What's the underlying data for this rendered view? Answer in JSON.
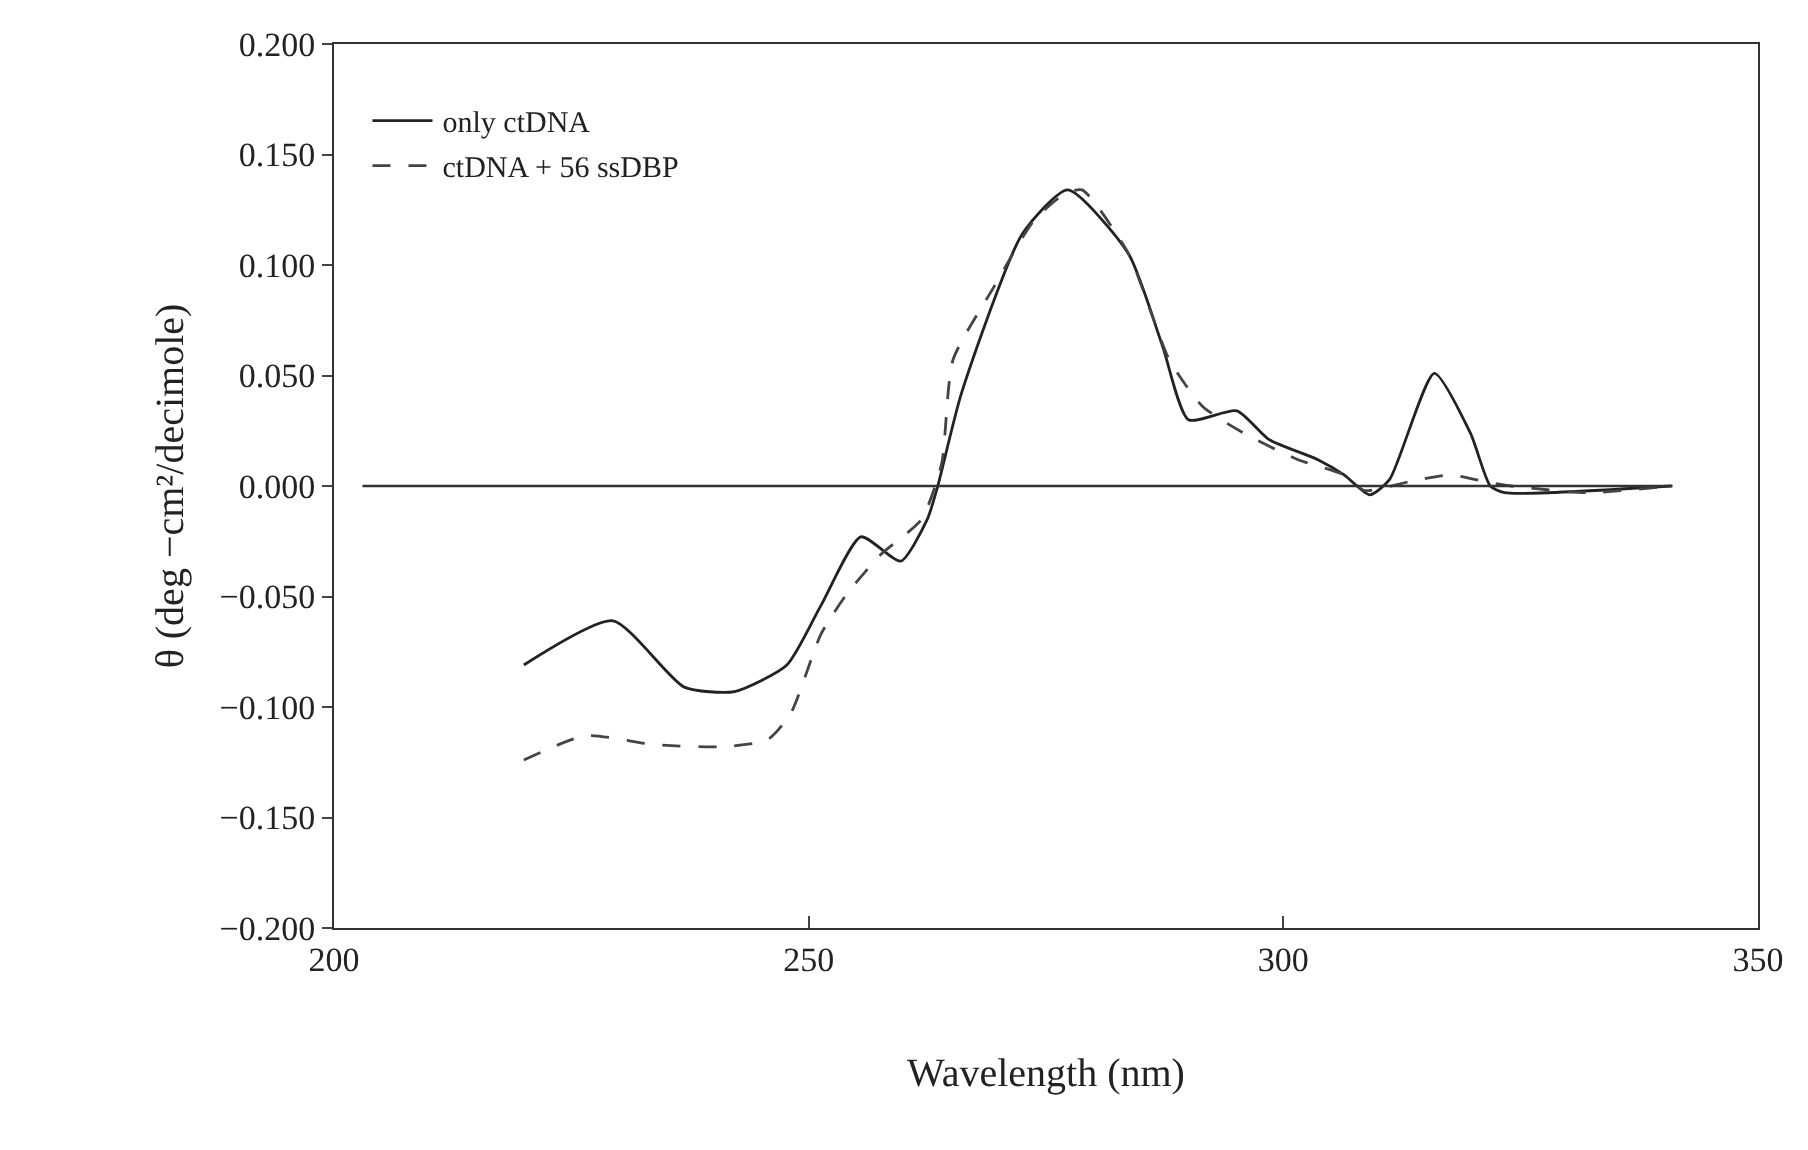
{
  "chart_data": {
    "type": "line",
    "xlabel": "Wavelength (nm)",
    "ylabel": "θ (deg −cm²/decimole)",
    "xlim": [
      200,
      350
    ],
    "xticks": [
      200,
      250,
      300,
      350
    ],
    "ylim": [
      -0.2,
      0.2
    ],
    "yticks": [
      {
        "value": 0.2,
        "label": "0.200"
      },
      {
        "value": 0.15,
        "label": "0.150"
      },
      {
        "value": 0.1,
        "label": "0.100"
      },
      {
        "value": 0.05,
        "label": "0.050"
      },
      {
        "value": 0,
        "label": "0.000"
      },
      {
        "value": -0.05,
        "label": "−0.050"
      },
      {
        "value": -0.1,
        "label": "−0.100"
      },
      {
        "value": -0.15,
        "label": "−0.150"
      },
      {
        "value": -0.2,
        "label": "−0.200"
      }
    ],
    "grid": false,
    "legend": "top left",
    "marker": "none",
    "ref_lines": [
      {
        "axis": "y",
        "value": 0,
        "color": "#333333"
      }
    ],
    "series": [
      {
        "name": "only ctDNA",
        "color": "#222222",
        "line_style": "solid",
        "x": [
          220,
          229.4,
          236.9,
          242.2,
          247.7,
          251.3,
          255.5,
          259.7,
          262.5,
          263.6,
          266.1,
          272.5,
          277.3,
          283.7,
          287.3,
          290,
          295.1,
          298.5,
          303.6,
          306.4,
          309.1,
          311.2,
          315.9,
          319.7,
          321.8,
          323.3,
          340.9
        ],
        "values": [
          -0.081,
          -0.061,
          -0.091,
          -0.093,
          -0.081,
          -0.054,
          -0.023,
          -0.034,
          -0.015,
          0,
          0.042,
          0.114,
          0.134,
          0.105,
          0.063,
          0.03,
          0.034,
          0.021,
          0.012,
          0.005,
          -0.004,
          0.003,
          0.051,
          0.024,
          0,
          -0.003,
          0
        ]
      },
      {
        "name": "ctDNA + 56 ssDBP",
        "color": "#444444",
        "line_style": "dashed",
        "x": [
          220,
          226.5,
          233.7,
          240.7,
          245.6,
          248.1,
          251.3,
          254,
          257.6,
          261.9,
          264,
          265.2,
          269.5,
          273.7,
          276.9,
          278.8,
          283.7,
          288,
          291.5,
          295.8,
          301.5,
          306.4,
          308.5,
          313.3,
          317.6,
          321.2,
          324,
          332,
          340.9
        ],
        "values": [
          -0.124,
          -0.113,
          -0.117,
          -0.118,
          -0.115,
          -0.103,
          -0.067,
          -0.049,
          -0.031,
          -0.015,
          0.01,
          0.057,
          0.09,
          0.12,
          0.132,
          0.134,
          0.105,
          0.057,
          0.036,
          0.024,
          0.012,
          0.005,
          -0.002,
          0.002,
          0.005,
          0.002,
          0,
          -0.003,
          0
        ]
      }
    ]
  }
}
